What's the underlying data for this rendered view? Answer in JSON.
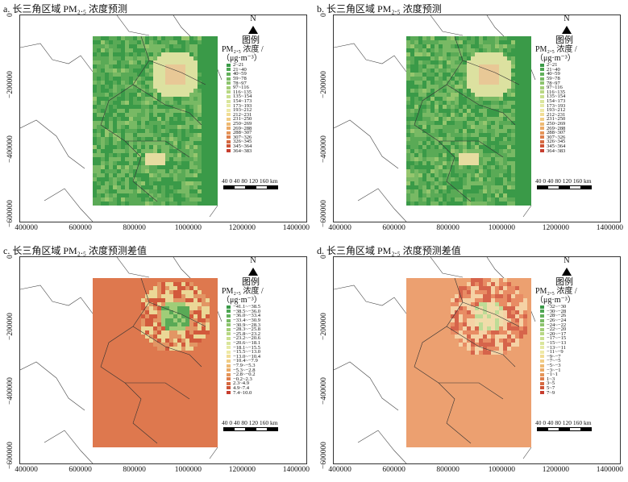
{
  "panels": [
    {
      "id": "a",
      "title": "a. 长三角区域 PM₂.₅ 浓度预测",
      "kind": "conc",
      "style": "a"
    },
    {
      "id": "b",
      "title": "b. 长三角区域 PM₂.₅ 浓度预测",
      "kind": "conc",
      "style": "b"
    },
    {
      "id": "c",
      "title": "c. 长三角区域 PM₂.₅ 浓度预测差值",
      "kind": "diff",
      "style": "c"
    },
    {
      "id": "d",
      "title": "d. 长三角区域 PM₂.₅ 浓度预测差值",
      "kind": "diff",
      "style": "d"
    }
  ],
  "axes": {
    "x_ticks": [
      "400000",
      "600000",
      "800000",
      "1000000",
      "1200000",
      "1400000"
    ],
    "y_ticks": [
      "0",
      "−200000",
      "−400000",
      "−600000"
    ]
  },
  "north_label": "N",
  "legend_title": "图例",
  "legend_unit_line1": "PM₂.₅ 浓度 /",
  "legend_unit_line2": "（μg·m⁻³）",
  "scale": {
    "labels": "40  0  40  80 120 160 km"
  },
  "legend_conc": {
    "labels": [
      "2~21",
      "21~40",
      "40~59",
      "59~78",
      "78~97",
      "97~116",
      "116~135",
      "135~154",
      "154~173",
      "173~193",
      "193~212",
      "212~231",
      "231~250",
      "250~269",
      "269~288",
      "288~307",
      "307~326",
      "326~345",
      "345~364",
      "364~383"
    ],
    "colors": [
      "#3a9a48",
      "#4ea653",
      "#63b05c",
      "#78ba64",
      "#8dc46e",
      "#a3ce78",
      "#b8d784",
      "#cadf90",
      "#d9e59c",
      "#e6eaa6",
      "#eee9a6",
      "#f1dd96",
      "#f1cd85",
      "#eeba74",
      "#ebaa66",
      "#e59559",
      "#de7f4d",
      "#d66a41",
      "#ce5437",
      "#c73e2f"
    ]
  },
  "legend_c": {
    "labels": [
      "−41.1~−38.5",
      "−38.5~−36.0",
      "−36.0~−33.4",
      "−33.4~−30.9",
      "−30.9~−28.3",
      "−28.3~−25.8",
      "−25.8~−23.2",
      "−23.2~−20.6",
      "−20.6~−18.1",
      "−18.1~−15.5",
      "−15.5~−13.0",
      "−13.0~−10.4",
      "−10.4~−7.9",
      "−7.9~−5.3",
      "−5.3~−2.8",
      "−2.8~−0.2",
      "−0.2~2.3",
      "2.3~4.9",
      "4.9~7.4",
      "7.4~10.0"
    ],
    "colors": [
      "#3a9a48",
      "#4ea653",
      "#63b05c",
      "#78ba64",
      "#8dc46e",
      "#a3ce78",
      "#b8d784",
      "#cadf90",
      "#d9e59c",
      "#e6eaa6",
      "#eee9a6",
      "#f1dd96",
      "#f1cd85",
      "#eeba74",
      "#ebaa66",
      "#e59559",
      "#de7f4d",
      "#d66a41",
      "#ce5437",
      "#c73e2f"
    ]
  },
  "legend_d": {
    "labels": [
      "−32~−30",
      "−30~−28",
      "−28~−26",
      "−26~−24",
      "−24~−22",
      "−22~−20",
      "−20~−17",
      "−17~−15",
      "−15~−13",
      "−13~−11",
      "−11~−9",
      "−9~−7",
      "−7~−5",
      "−5~−3",
      "−3~−1",
      "−1~1",
      "1~3",
      "3~5",
      "5~7",
      "7~9"
    ],
    "colors": [
      "#3a9a48",
      "#4ea653",
      "#63b05c",
      "#78ba64",
      "#8dc46e",
      "#a3ce78",
      "#b8d784",
      "#cadf90",
      "#d9e59c",
      "#e6eaa6",
      "#eee9a6",
      "#f1dd96",
      "#f1cd85",
      "#eeba74",
      "#ebaa66",
      "#e59559",
      "#de7f4d",
      "#d66a41",
      "#ce5437",
      "#c73e2f"
    ]
  }
}
